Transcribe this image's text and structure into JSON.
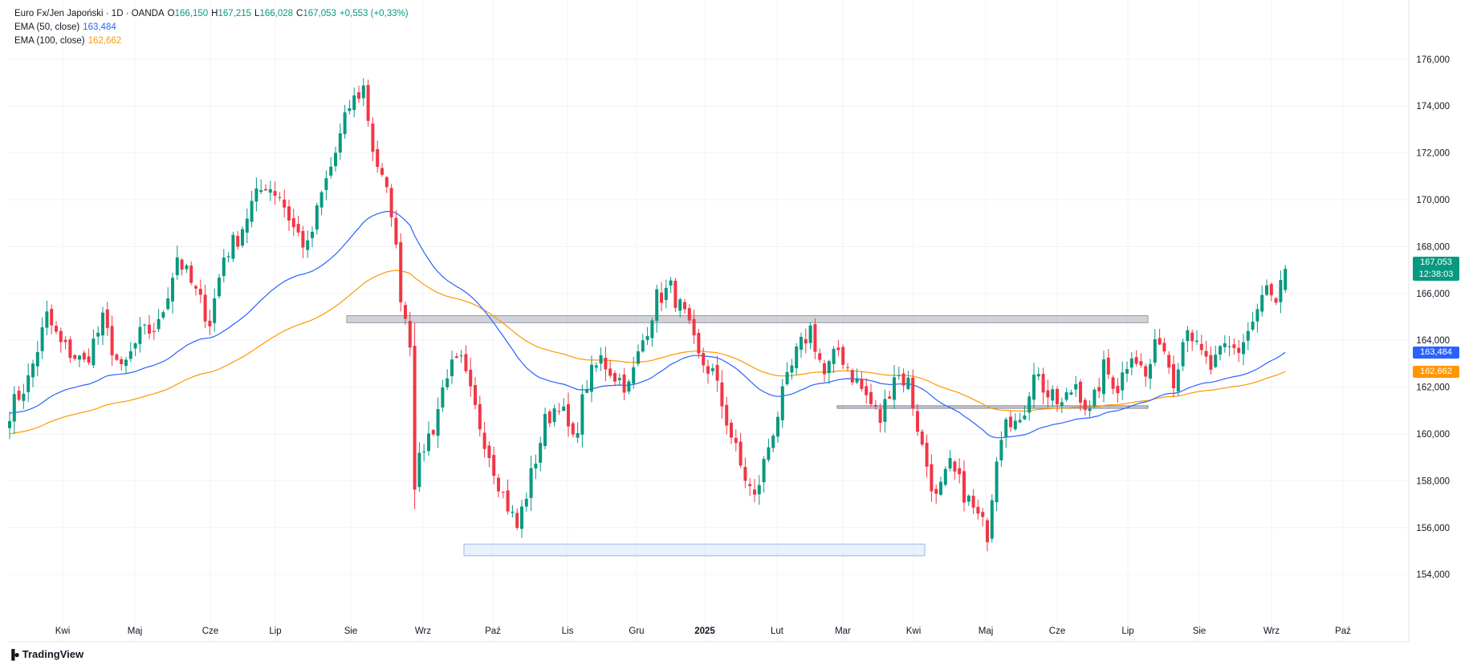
{
  "legend": {
    "symbol": "Euro Fx/Jen Japoński · 1D · OANDA",
    "o_label": "O",
    "o_value": "166,150",
    "h_label": "H",
    "h_value": "167,215",
    "l_label": "L",
    "l_value": "166,028",
    "c_label": "C",
    "c_value": "167,053",
    "change": "+0,553 (+0,33%)",
    "ema50_label": "EMA (50, close)",
    "ema50_value": "163,484",
    "ema100_label": "EMA (100, close)",
    "ema100_value": "162,662"
  },
  "price_labels": {
    "last": "167,053",
    "countdown": "12:38:03",
    "ema50": "163,484",
    "ema100": "162,662"
  },
  "brand": {
    "name": "TradingView",
    "icon": "tradingview-logo-icon"
  },
  "colors": {
    "up": "#089981",
    "down": "#f23645",
    "ema50": "#2962ff",
    "ema100": "#ff9800",
    "grid": "#f0f3fa",
    "text": "#131722"
  },
  "chart_data": {
    "type": "candlestick",
    "instrument": "Euro Fx/Jen Japoński",
    "interval": "1D",
    "source": "OANDA",
    "ylim": [
      152.5,
      177.5
    ],
    "y_ticks": [
      154,
      156,
      158,
      160,
      162,
      164,
      166,
      168,
      170,
      172,
      174,
      176
    ],
    "y_tick_labels": [
      "154,000",
      "156,000",
      "158,000",
      "160,000",
      "162,000",
      "164,000",
      "166,000",
      "168,000",
      "170,000",
      "172,000",
      "174,000",
      "176,000"
    ],
    "x_labels": [
      "Kwi",
      "Maj",
      "Cze",
      "Lip",
      "Sie",
      "Wrz",
      "Paź",
      "Lis",
      "Gru",
      "2025",
      "Lut",
      "Mar",
      "Kwi",
      "Maj",
      "Cze",
      "Lip",
      "Sie",
      "Wrz",
      "Paź"
    ],
    "x_label_bold": "2025",
    "close_path": [
      [
        0,
        161.0
      ],
      [
        4,
        162.3
      ],
      [
        8,
        165.0
      ],
      [
        11,
        163.8
      ],
      [
        16,
        163.0
      ],
      [
        20,
        164.8
      ],
      [
        24,
        162.6
      ],
      [
        28,
        164.2
      ],
      [
        32,
        164.6
      ],
      [
        36,
        167.6
      ],
      [
        40,
        166.0
      ],
      [
        43,
        164.8
      ],
      [
        46,
        167.6
      ],
      [
        49,
        168.4
      ],
      [
        52,
        169.8
      ],
      [
        55,
        170.7
      ],
      [
        58,
        170.2
      ],
      [
        61,
        168.8
      ],
      [
        64,
        167.9
      ],
      [
        67,
        170.2
      ],
      [
        70,
        172.0
      ],
      [
        73,
        174.0
      ],
      [
        76,
        174.8
      ],
      [
        78,
        172.2
      ],
      [
        80,
        170.8
      ],
      [
        82,
        169.6
      ],
      [
        84,
        166.0
      ],
      [
        86,
        164.0
      ],
      [
        87,
        158.0
      ],
      [
        89,
        159.5
      ],
      [
        91,
        160.3
      ],
      [
        94,
        162.7
      ],
      [
        97,
        163.0
      ],
      [
        100,
        161.0
      ],
      [
        103,
        159.2
      ],
      [
        106,
        157.4
      ],
      [
        109,
        156.0
      ],
      [
        112,
        158.2
      ],
      [
        115,
        160.5
      ],
      [
        118,
        161.4
      ],
      [
        121,
        159.6
      ],
      [
        124,
        162.2
      ],
      [
        127,
        163.2
      ],
      [
        130,
        162.5
      ],
      [
        133,
        162.0
      ],
      [
        136,
        164.0
      ],
      [
        139,
        165.8
      ],
      [
        142,
        166.2
      ],
      [
        145,
        165.0
      ],
      [
        148,
        163.2
      ],
      [
        151,
        162.6
      ],
      [
        154,
        160.6
      ],
      [
        157,
        158.6
      ],
      [
        160,
        157.2
      ],
      [
        163,
        159.5
      ],
      [
        166,
        161.6
      ],
      [
        169,
        163.4
      ],
      [
        172,
        164.5
      ],
      [
        175,
        162.5
      ],
      [
        178,
        163.6
      ],
      [
        181,
        162.5
      ],
      [
        184,
        161.6
      ],
      [
        187,
        160.6
      ],
      [
        190,
        162.6
      ],
      [
        193,
        162.2
      ],
      [
        196,
        159.4
      ],
      [
        199,
        157.2
      ],
      [
        202,
        158.6
      ],
      [
        205,
        157.5
      ],
      [
        208,
        156.4
      ],
      [
        210,
        155.8
      ],
      [
        212,
        159.2
      ],
      [
        214,
        161.0
      ],
      [
        217,
        160.2
      ],
      [
        220,
        162.8
      ],
      [
        223,
        161.6
      ],
      [
        226,
        161.2
      ],
      [
        229,
        162.2
      ],
      [
        232,
        160.8
      ],
      [
        235,
        162.8
      ],
      [
        238,
        162.0
      ],
      [
        241,
        163.6
      ],
      [
        244,
        162.4
      ],
      [
        247,
        164.2
      ],
      [
        250,
        162.4
      ],
      [
        253,
        164.8
      ],
      [
        255,
        163.6
      ],
      [
        258,
        162.8
      ],
      [
        261,
        163.6
      ],
      [
        264,
        163.6
      ],
      [
        267,
        164.8
      ],
      [
        270,
        166.2
      ],
      [
        272,
        165.4
      ],
      [
        274,
        167.05
      ]
    ],
    "ema50": {
      "name": "EMA (50, close)",
      "last": 163.484
    },
    "ema100": {
      "name": "EMA (100, close)",
      "last": 162.662
    },
    "ohlc_last": {
      "open": 166.15,
      "high": 167.215,
      "low": 166.028,
      "close": 167.053
    },
    "zones": [
      {
        "y1": 164.75,
        "y2": 165.05,
        "kind": "resistance"
      },
      {
        "y1": 161.1,
        "y2": 161.2,
        "kind": "support"
      },
      {
        "y1": 154.8,
        "y2": 155.3,
        "kind": "demand"
      }
    ],
    "grid": true,
    "legend_position": "top-left"
  }
}
